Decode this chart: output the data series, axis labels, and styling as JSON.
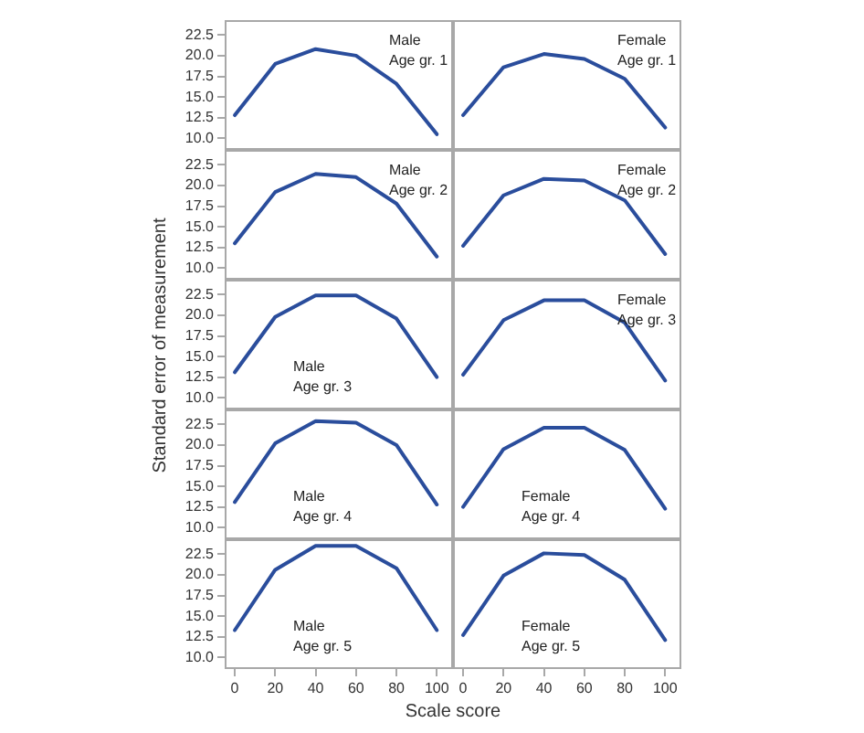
{
  "chart_data": [
    {
      "type": "line",
      "xlabel": "Scale score",
      "ylabel": "Standard error of measurement",
      "annotations": [
        "Male",
        "Age gr. 1"
      ],
      "x": [
        0,
        20,
        40,
        60,
        80,
        100
      ],
      "series": [
        {
          "color": "#2a4d9c",
          "values": [
            12.8,
            19.0,
            20.8,
            20.0,
            16.6,
            10.5
          ]
        }
      ],
      "xlim": [
        -5,
        108
      ],
      "ylim": [
        8.6,
        24.3
      ],
      "xticks": [
        0,
        20,
        40,
        60,
        80,
        100
      ],
      "yticks": [
        {
          "value": 10,
          "label": "10.0"
        },
        {
          "value": 12.5,
          "label": "12.5"
        },
        {
          "value": 15,
          "label": "15.0"
        },
        {
          "value": 17.5,
          "label": "17.5"
        },
        {
          "value": 20,
          "label": "20.0"
        },
        {
          "value": 22.5,
          "label": "22.5"
        }
      ],
      "tick_labels": "y",
      "grid": false,
      "legend": false,
      "marker": "none",
      "line_style": "solid"
    },
    {
      "type": "line",
      "annotations": [
        "Female",
        "Age gr. 1"
      ],
      "x": [
        0,
        20,
        40,
        60,
        80,
        100
      ],
      "series": [
        {
          "color": "#2a4d9c",
          "values": [
            12.8,
            18.6,
            20.2,
            19.6,
            17.2,
            11.3
          ]
        }
      ],
      "xlim": [
        -5,
        108
      ],
      "ylim": [
        8.6,
        24.3
      ],
      "xticks": [
        0,
        20,
        40,
        60,
        80,
        100
      ],
      "tick_labels": false,
      "grid": false,
      "legend": false,
      "marker": "none",
      "line_style": "solid"
    },
    {
      "type": "line",
      "annotations": [
        "Male",
        "Age gr. 2"
      ],
      "x": [
        0,
        20,
        40,
        60,
        80,
        100
      ],
      "series": [
        {
          "color": "#2a4d9c",
          "values": [
            13.0,
            19.2,
            21.4,
            21.0,
            17.8,
            11.4
          ]
        }
      ],
      "xlim": [
        -5,
        108
      ],
      "ylim": [
        8.6,
        24.3
      ],
      "xticks": [
        0,
        20,
        40,
        60,
        80,
        100
      ],
      "yticks": [
        {
          "value": 10,
          "label": "10.0"
        },
        {
          "value": 12.5,
          "label": "12.5"
        },
        {
          "value": 15,
          "label": "15.0"
        },
        {
          "value": 17.5,
          "label": "17.5"
        },
        {
          "value": 20,
          "label": "20.0"
        },
        {
          "value": 22.5,
          "label": "22.5"
        }
      ],
      "tick_labels": "y",
      "grid": false,
      "legend": false,
      "marker": "none",
      "line_style": "solid"
    },
    {
      "type": "line",
      "annotations": [
        "Female",
        "Age gr. 2"
      ],
      "x": [
        0,
        20,
        40,
        60,
        80,
        100
      ],
      "series": [
        {
          "color": "#2a4d9c",
          "values": [
            12.7,
            18.8,
            20.8,
            20.6,
            18.2,
            11.7
          ]
        }
      ],
      "xlim": [
        -5,
        108
      ],
      "ylim": [
        8.6,
        24.3
      ],
      "xticks": [
        0,
        20,
        40,
        60,
        80,
        100
      ],
      "tick_labels": false,
      "grid": false,
      "legend": false,
      "marker": "none",
      "line_style": "solid"
    },
    {
      "type": "line",
      "annotations": [
        "Male",
        "Age gr. 3"
      ],
      "x": [
        0,
        20,
        40,
        60,
        80,
        100
      ],
      "series": [
        {
          "color": "#2a4d9c",
          "values": [
            13.1,
            19.8,
            22.4,
            22.4,
            19.6,
            12.5
          ]
        }
      ],
      "xlim": [
        -5,
        108
      ],
      "ylim": [
        8.6,
        24.3
      ],
      "xticks": [
        0,
        20,
        40,
        60,
        80,
        100
      ],
      "yticks": [
        {
          "value": 10,
          "label": "10.0"
        },
        {
          "value": 12.5,
          "label": "12.5"
        },
        {
          "value": 15,
          "label": "15.0"
        },
        {
          "value": 17.5,
          "label": "17.5"
        },
        {
          "value": 20,
          "label": "20.0"
        },
        {
          "value": 22.5,
          "label": "22.5"
        }
      ],
      "tick_labels": "y",
      "grid": false,
      "legend": false,
      "marker": "none",
      "line_style": "solid"
    },
    {
      "type": "line",
      "annotations": [
        "Female",
        "Age gr. 3"
      ],
      "x": [
        0,
        20,
        40,
        60,
        80,
        100
      ],
      "series": [
        {
          "color": "#2a4d9c",
          "values": [
            12.8,
            19.4,
            21.8,
            21.8,
            19.1,
            12.1
          ]
        }
      ],
      "xlim": [
        -5,
        108
      ],
      "ylim": [
        8.6,
        24.3
      ],
      "xticks": [
        0,
        20,
        40,
        60,
        80,
        100
      ],
      "tick_labels": false,
      "grid": false,
      "legend": false,
      "marker": "none",
      "line_style": "solid"
    },
    {
      "type": "line",
      "annotations": [
        "Male",
        "Age gr. 4"
      ],
      "x": [
        0,
        20,
        40,
        60,
        80,
        100
      ],
      "series": [
        {
          "color": "#2a4d9c",
          "values": [
            13.1,
            20.2,
            22.9,
            22.7,
            20.0,
            12.8
          ]
        }
      ],
      "xlim": [
        -5,
        108
      ],
      "ylim": [
        8.6,
        24.3
      ],
      "xticks": [
        0,
        20,
        40,
        60,
        80,
        100
      ],
      "yticks": [
        {
          "value": 10,
          "label": "10.0"
        },
        {
          "value": 12.5,
          "label": "12.5"
        },
        {
          "value": 15,
          "label": "15.0"
        },
        {
          "value": 17.5,
          "label": "17.5"
        },
        {
          "value": 20,
          "label": "20.0"
        },
        {
          "value": 22.5,
          "label": "22.5"
        }
      ],
      "tick_labels": "y",
      "grid": false,
      "legend": false,
      "marker": "none",
      "line_style": "solid"
    },
    {
      "type": "line",
      "annotations": [
        "Female",
        "Age gr. 4"
      ],
      "x": [
        0,
        20,
        40,
        60,
        80,
        100
      ],
      "series": [
        {
          "color": "#2a4d9c",
          "values": [
            12.5,
            19.5,
            22.1,
            22.1,
            19.4,
            12.3
          ]
        }
      ],
      "xlim": [
        -5,
        108
      ],
      "ylim": [
        8.6,
        24.3
      ],
      "xticks": [
        0,
        20,
        40,
        60,
        80,
        100
      ],
      "tick_labels": false,
      "grid": false,
      "legend": false,
      "marker": "none",
      "line_style": "solid"
    },
    {
      "type": "line",
      "annotations": [
        "Male",
        "Age gr. 5"
      ],
      "x": [
        0,
        20,
        40,
        60,
        80,
        100
      ],
      "series": [
        {
          "color": "#2a4d9c",
          "values": [
            13.3,
            20.6,
            23.5,
            23.5,
            20.8,
            13.3
          ]
        }
      ],
      "xlim": [
        -5,
        108
      ],
      "ylim": [
        8.6,
        24.3
      ],
      "xticks": [
        0,
        20,
        40,
        60,
        80,
        100
      ],
      "yticks": [
        {
          "value": 10,
          "label": "10.0"
        },
        {
          "value": 12.5,
          "label": "12.5"
        },
        {
          "value": 15,
          "label": "15.0"
        },
        {
          "value": 17.5,
          "label": "17.5"
        },
        {
          "value": 20,
          "label": "20.0"
        },
        {
          "value": 22.5,
          "label": "22.5"
        }
      ],
      "grid": false,
      "legend": false,
      "marker": "none",
      "line_style": "solid"
    },
    {
      "type": "line",
      "annotations": [
        "Female",
        "Age gr. 5"
      ],
      "x": [
        0,
        20,
        40,
        60,
        80,
        100
      ],
      "series": [
        {
          "color": "#2a4d9c",
          "values": [
            12.7,
            19.9,
            22.6,
            22.4,
            19.4,
            12.1
          ]
        }
      ],
      "xlim": [
        -5,
        108
      ],
      "ylim": [
        8.6,
        24.3
      ],
      "xticks": [
        0,
        20,
        40,
        60,
        80,
        100
      ],
      "tick_labels": "x",
      "grid": false,
      "legend": false,
      "marker": "none",
      "line_style": "solid"
    }
  ]
}
